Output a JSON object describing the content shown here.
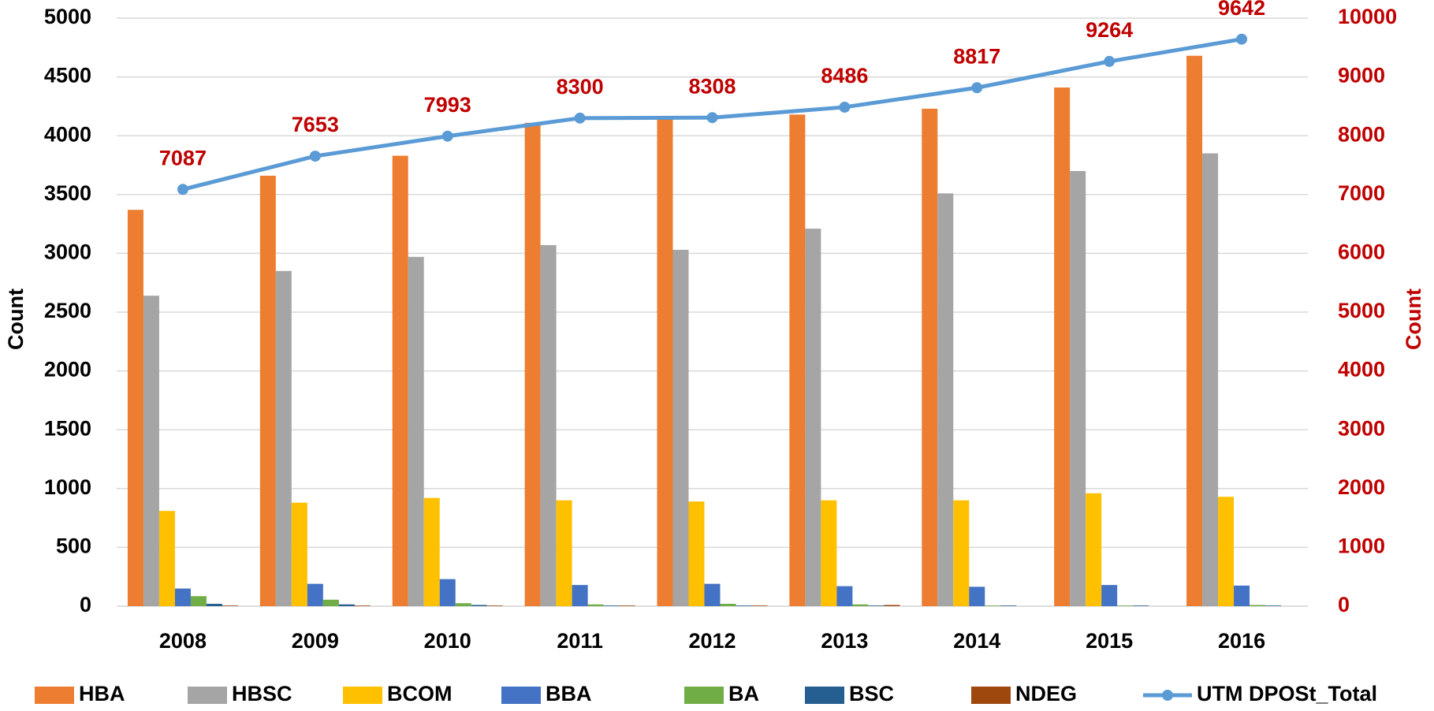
{
  "chart_data": {
    "type": "bar",
    "categories": [
      "2008",
      "2009",
      "2010",
      "2011",
      "2012",
      "2013",
      "2014",
      "2015",
      "2016"
    ],
    "y_label": "Count",
    "y2_label": "Count",
    "ylim": [
      0,
      5000
    ],
    "yticks": [
      0,
      500,
      1000,
      1500,
      2000,
      2500,
      3000,
      3500,
      4000,
      4500,
      5000
    ],
    "y2lim": [
      0,
      10000
    ],
    "y2ticks": [
      0,
      1000,
      2000,
      3000,
      4000,
      5000,
      6000,
      7000,
      8000,
      9000,
      10000
    ],
    "grid": true,
    "legend": "bottom",
    "series": [
      {
        "name": "HBA",
        "color": "#ED7D31",
        "values": [
          3370,
          3660,
          3830,
          4110,
          4150,
          4180,
          4230,
          4410,
          4680
        ]
      },
      {
        "name": "HBSC",
        "color": "#A5A5A5",
        "values": [
          2640,
          2850,
          2970,
          3070,
          3030,
          3210,
          3510,
          3700,
          3850
        ]
      },
      {
        "name": "BCOM",
        "color": "#FFC000",
        "values": [
          810,
          880,
          920,
          900,
          890,
          900,
          900,
          960,
          930
        ]
      },
      {
        "name": "BBA",
        "color": "#4472C4",
        "values": [
          150,
          190,
          230,
          180,
          190,
          170,
          165,
          180,
          175
        ]
      },
      {
        "name": "BA",
        "color": "#70AD47",
        "values": [
          85,
          55,
          25,
          15,
          20,
          15,
          5,
          5,
          10
        ]
      },
      {
        "name": "BSC",
        "color": "#255E91",
        "values": [
          20,
          15,
          10,
          5,
          5,
          5,
          5,
          5,
          5
        ]
      },
      {
        "name": "NDEG",
        "color": "#9E480E",
        "values": [
          5,
          5,
          5,
          5,
          5,
          10,
          0,
          0,
          0
        ]
      },
      {
        "name": "UTM DPOSt_Total",
        "color": "#5B9BD5",
        "type": "line",
        "axis": "y2",
        "values": [
          7087,
          7653,
          7993,
          8300,
          8308,
          8486,
          8817,
          9264,
          9642
        ]
      }
    ]
  }
}
